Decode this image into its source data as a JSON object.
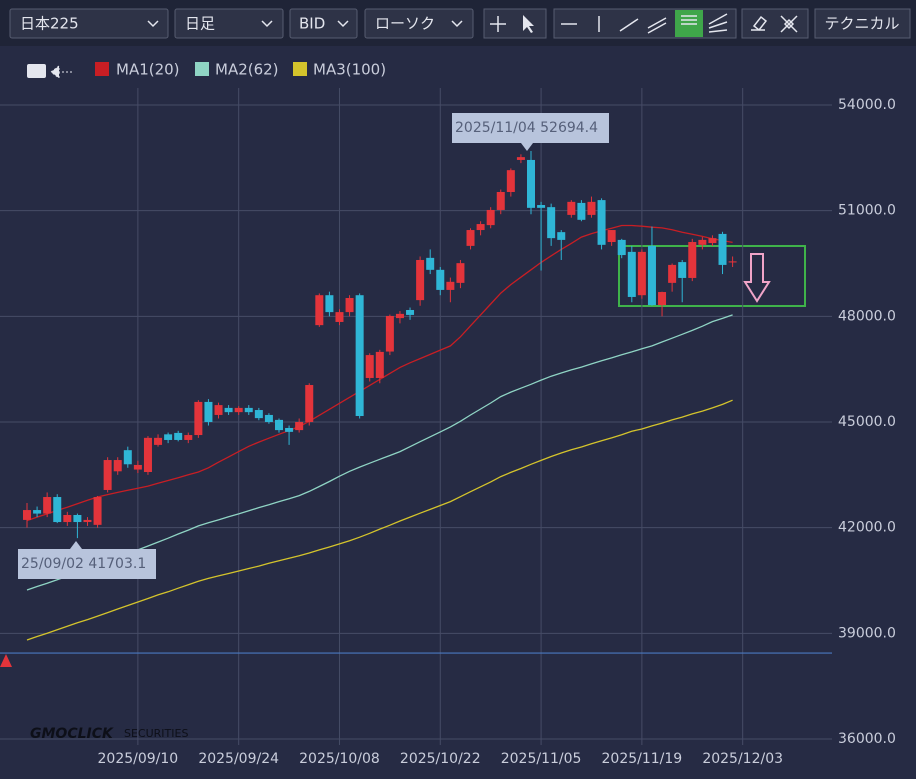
{
  "toolbar": {
    "symbol": "日本225",
    "timeframe": "日足",
    "price_type": "BID",
    "chart_style": "ローソク",
    "technical": "テクニカル"
  },
  "watermark": {
    "brand": "GMOCLICK",
    "suffix": "SECURITIES"
  },
  "chart_data": {
    "type": "candlestick",
    "categories": [
      null,
      null,
      null,
      null,
      null,
      null,
      null,
      null,
      null,
      null,
      null,
      "2025/09/10",
      null,
      null,
      null,
      null,
      null,
      null,
      null,
      null,
      null,
      "2025/09/24",
      null,
      null,
      null,
      null,
      null,
      null,
      null,
      null,
      null,
      "2025/10/08",
      null,
      null,
      null,
      null,
      null,
      null,
      null,
      null,
      null,
      "2025/10/22",
      null,
      null,
      null,
      null,
      null,
      null,
      null,
      null,
      null,
      "2025/11/05",
      null,
      null,
      null,
      null,
      null,
      null,
      null,
      null,
      null,
      "2025/11/19",
      null,
      null,
      null,
      null,
      null,
      null,
      null,
      null,
      null,
      "2025/12/03"
    ],
    "open": [
      42220,
      42500,
      42400,
      42870,
      42160,
      42360,
      42160,
      42080,
      43070,
      43600,
      44200,
      43650,
      43580,
      44350,
      44650,
      44690,
      44490,
      44630,
      45570,
      45200,
      45400,
      45280,
      45400,
      45340,
      45200,
      45060,
      44830,
      44770,
      45000,
      47750,
      48600,
      47840,
      48120,
      48600,
      46250,
      46250,
      47000,
      47950,
      48180,
      48460,
      49660,
      49320,
      48750,
      48950,
      50000,
      50450,
      50590,
      51020,
      51530,
      52440,
      52440,
      51160,
      51100,
      50390,
      50880,
      51220,
      50880,
      51300,
      50110,
      50170,
      49830,
      48600,
      50000,
      48320,
      48950,
      49540,
      49090,
      50030,
      50080,
      50340,
      49530,
      null
    ],
    "high": [
      42700,
      42600,
      43000,
      42950,
      42450,
      42400,
      42300,
      42900,
      44000,
      44000,
      44300,
      43900,
      44600,
      44650,
      44700,
      44750,
      44700,
      45620,
      45650,
      45550,
      45480,
      45450,
      45480,
      45400,
      45250,
      45100,
      44900,
      45100,
      46100,
      48650,
      48700,
      48200,
      48600,
      48650,
      46950,
      47050,
      48050,
      48150,
      48250,
      49700,
      49900,
      49400,
      49100,
      49600,
      50500,
      50700,
      51100,
      51600,
      52200,
      52600,
      52694.4,
      51250,
      51200,
      50450,
      51300,
      51300,
      51400,
      51350,
      50450,
      50200,
      50000,
      49900,
      50550,
      48700,
      49500,
      49600,
      50200,
      50250,
      50300,
      50400,
      49700,
      null
    ],
    "low": [
      42000,
      42300,
      42300,
      42130,
      42050,
      41703.1,
      42050,
      42000,
      43000,
      43500,
      43700,
      43550,
      43500,
      44300,
      44400,
      44450,
      44400,
      44550,
      44900,
      45100,
      45200,
      45200,
      45200,
      45050,
      44950,
      44700,
      44350,
      44700,
      44900,
      47700,
      48000,
      47750,
      48000,
      45100,
      46150,
      46100,
      46900,
      47800,
      47900,
      48300,
      49200,
      48600,
      48400,
      48800,
      49900,
      50300,
      50500,
      50900,
      51400,
      52350,
      50900,
      49300,
      50000,
      49600,
      50800,
      50700,
      50800,
      49900,
      50000,
      49650,
      48400,
      48500,
      48300,
      48000,
      48700,
      48400,
      49000,
      49900,
      50000,
      49200,
      49400,
      null
    ],
    "close": [
      42500,
      42400,
      42870,
      42160,
      42360,
      42160,
      42220,
      42870,
      43920,
      43920,
      43800,
      43780,
      44550,
      44550,
      44490,
      44490,
      44630,
      45570,
      45000,
      45480,
      45280,
      45400,
      45280,
      45110,
      45000,
      44770,
      44720,
      45000,
      46050,
      48600,
      48120,
      48120,
      48520,
      45170,
      46900,
      46990,
      48010,
      48070,
      48040,
      49600,
      49320,
      48750,
      48980,
      49510,
      50450,
      50620,
      51020,
      51530,
      52150,
      52520,
      51080,
      51080,
      50220,
      50170,
      51250,
      50740,
      51250,
      50030,
      50450,
      49740,
      48550,
      49830,
      48320,
      48690,
      49460,
      49090,
      50110,
      50170,
      50220,
      49460,
      49560,
      null
    ],
    "up_color": "#e3343b",
    "down_color": "#2fb6d6",
    "series": [
      {
        "name": "MA1(20)",
        "color": "#c81e24",
        "values": [
          42200,
          42300,
          42390,
          42490,
          42580,
          42680,
          42780,
          42870,
          42940,
          43000,
          43060,
          43120,
          43180,
          43260,
          43340,
          43420,
          43500,
          43580,
          43700,
          43860,
          44010,
          44160,
          44310,
          44430,
          44540,
          44650,
          44760,
          44870,
          45020,
          45190,
          45360,
          45530,
          45700,
          45870,
          46040,
          46210,
          46380,
          46550,
          46680,
          46800,
          46920,
          47040,
          47160,
          47420,
          47730,
          48040,
          48350,
          48660,
          48900,
          49110,
          49320,
          49530,
          49720,
          49900,
          50070,
          50250,
          50350,
          50430,
          50500,
          50580,
          50580,
          50560,
          50530,
          50510,
          50460,
          50390,
          50330,
          50270,
          50200,
          50150,
          50100,
          null
        ]
      },
      {
        "name": "MA2(62)",
        "color": "#8fd4c4",
        "values": [
          40230,
          40330,
          40420,
          40520,
          40620,
          40720,
          40810,
          40910,
          41020,
          41140,
          41250,
          41370,
          41480,
          41590,
          41700,
          41820,
          41930,
          42050,
          42140,
          42220,
          42310,
          42390,
          42480,
          42570,
          42650,
          42740,
          42820,
          42910,
          43030,
          43170,
          43310,
          43460,
          43600,
          43720,
          43830,
          43940,
          44050,
          44160,
          44300,
          44440,
          44580,
          44720,
          44860,
          45020,
          45200,
          45370,
          45540,
          45720,
          45850,
          45960,
          46070,
          46190,
          46300,
          46390,
          46480,
          46560,
          46650,
          46740,
          46820,
          46910,
          46990,
          47080,
          47160,
          47270,
          47380,
          47490,
          47600,
          47720,
          47850,
          47940,
          48040,
          null
        ]
      },
      {
        "name": "MA3(100)",
        "color": "#d4c42c",
        "values": [
          38810,
          38910,
          39000,
          39100,
          39200,
          39300,
          39390,
          39490,
          39590,
          39690,
          39790,
          39890,
          39990,
          40090,
          40180,
          40280,
          40380,
          40480,
          40560,
          40630,
          40700,
          40770,
          40840,
          40910,
          40990,
          41060,
          41130,
          41200,
          41280,
          41370,
          41450,
          41540,
          41630,
          41730,
          41840,
          41960,
          42070,
          42190,
          42300,
          42410,
          42520,
          42630,
          42740,
          42880,
          43020,
          43160,
          43300,
          43450,
          43570,
          43680,
          43800,
          43910,
          44020,
          44120,
          44210,
          44290,
          44380,
          44470,
          44550,
          44640,
          44740,
          44800,
          44890,
          44970,
          45060,
          45140,
          45230,
          45310,
          45400,
          45500,
          45620,
          null
        ]
      }
    ],
    "ylim": [
      36000,
      54000
    ],
    "yticks": [
      {
        "value": 36000,
        "label": "36000.0"
      },
      {
        "value": 39000,
        "label": "39000.0"
      },
      {
        "value": 42000,
        "label": "42000.0"
      },
      {
        "value": 45000,
        "label": "45000.0"
      },
      {
        "value": 48000,
        "label": "48000.0"
      },
      {
        "value": 51000,
        "label": "51000.0"
      },
      {
        "value": 54000,
        "label": "54000.0"
      }
    ],
    "grid": true,
    "reference_line": {
      "value": 38440,
      "color": "#4a78c0"
    },
    "annotations": [
      "2025/11/04 52694.4",
      "25/09/02 41703.1"
    ]
  }
}
